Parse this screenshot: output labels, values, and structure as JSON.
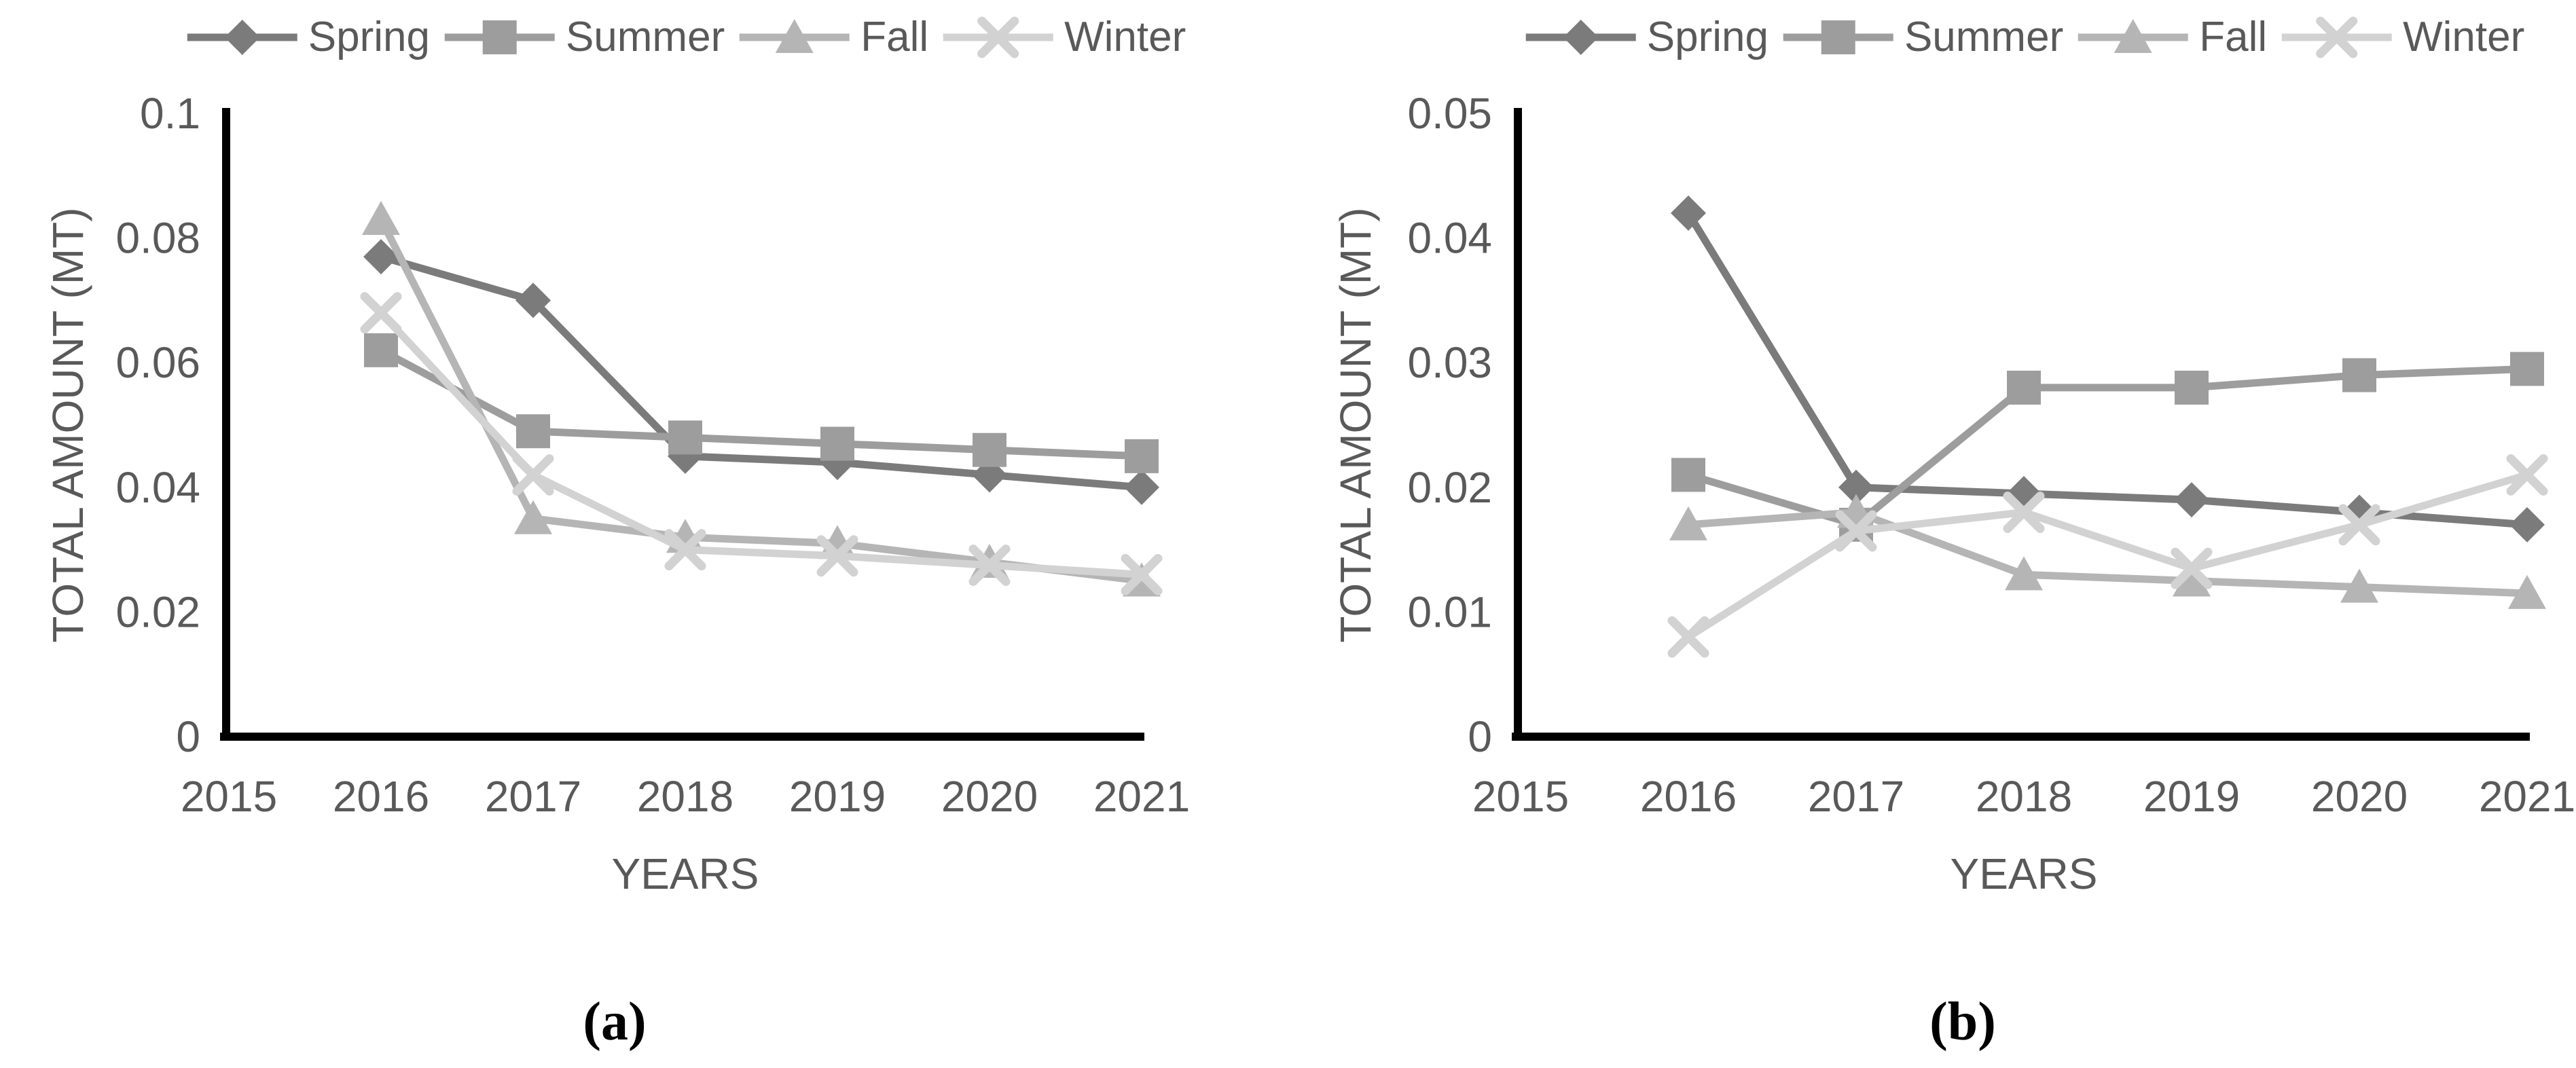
{
  "figure": {
    "background": "#ffffff",
    "text_color": "#595959",
    "axis_color": "#000000",
    "captions": {
      "a": "(a)",
      "b": "(b)"
    }
  },
  "chart_data": [
    {
      "id": "a",
      "type": "line",
      "title": "(a)",
      "xlabel": "YEARS",
      "ylabel": "TOTAL AMOUNT (MT)",
      "x_tick_labels": [
        "2015",
        "2016",
        "2017",
        "2018",
        "2019",
        "2020",
        "2021"
      ],
      "categories": [
        2016,
        2017,
        2018,
        2019,
        2020,
        2021
      ],
      "y_tick_labels": [
        "0",
        "0.02",
        "0.04",
        "0.06",
        "0.08",
        "0.1"
      ],
      "ylim": [
        0,
        0.1
      ],
      "grid": false,
      "legend_position": "top",
      "series": [
        {
          "name": "Spring",
          "marker": "diamond",
          "color": "#7b7b7b",
          "values": [
            0.077,
            0.07,
            0.045,
            0.044,
            0.042,
            0.04
          ]
        },
        {
          "name": "Summer",
          "marker": "square",
          "color": "#9d9d9d",
          "values": [
            0.062,
            0.049,
            0.048,
            0.047,
            0.046,
            0.045
          ]
        },
        {
          "name": "Fall",
          "marker": "triangle",
          "color": "#b5b5b5",
          "values": [
            0.083,
            0.035,
            0.032,
            0.031,
            0.028,
            0.025
          ]
        },
        {
          "name": "Winter",
          "marker": "x",
          "color": "#d2d2d2",
          "values": [
            0.068,
            0.042,
            0.03,
            0.029,
            0.0275,
            0.026
          ]
        }
      ]
    },
    {
      "id": "b",
      "type": "line",
      "title": "(b)",
      "xlabel": "YEARS",
      "ylabel": "TOTAL AMOUNT (MT)",
      "x_tick_labels": [
        "2015",
        "2016",
        "2017",
        "2018",
        "2019",
        "2020",
        "2021"
      ],
      "categories": [
        2016,
        2017,
        2018,
        2019,
        2020,
        2021
      ],
      "y_tick_labels": [
        "0",
        "0.01",
        "0.02",
        "0.03",
        "0.04",
        "0.05"
      ],
      "ylim": [
        0,
        0.05
      ],
      "grid": false,
      "legend_position": "top",
      "series": [
        {
          "name": "Spring",
          "marker": "diamond",
          "color": "#7b7b7b",
          "values": [
            0.042,
            0.02,
            0.0195,
            0.019,
            0.018,
            0.017
          ]
        },
        {
          "name": "Summer",
          "marker": "square",
          "color": "#9d9d9d",
          "values": [
            0.021,
            0.017,
            0.028,
            0.028,
            0.029,
            0.0295
          ]
        },
        {
          "name": "Fall",
          "marker": "triangle",
          "color": "#b5b5b5",
          "values": [
            0.017,
            0.018,
            0.013,
            0.0125,
            0.012,
            0.0115
          ]
        },
        {
          "name": "Winter",
          "marker": "x",
          "color": "#d2d2d2",
          "values": [
            0.008,
            0.0165,
            0.018,
            0.0135,
            0.017,
            0.021
          ]
        }
      ]
    }
  ]
}
